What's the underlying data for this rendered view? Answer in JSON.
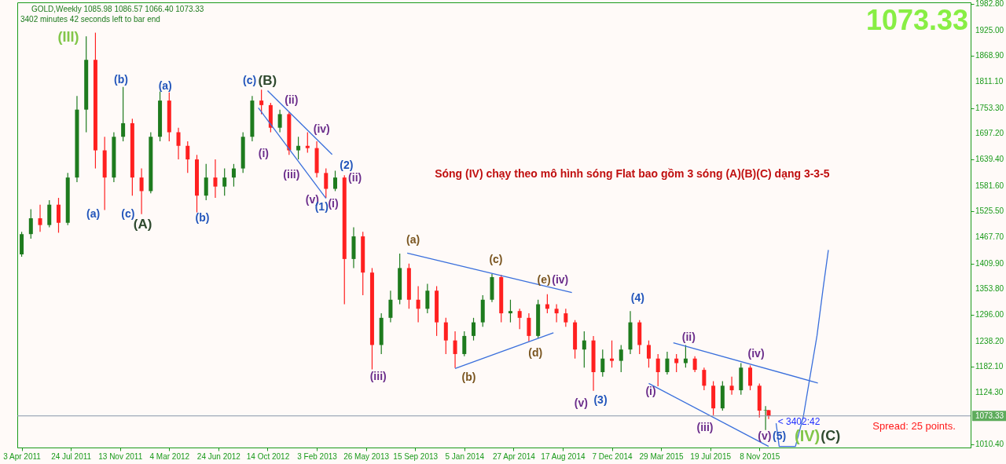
{
  "chart_data": {
    "type": "candlestick",
    "title": "GOLD,Weekly  1085.98 1086.57 1066.40 1073.33",
    "subtitle": "3402 minutes 42 seconds left to bar end",
    "x": [
      "2011-04-03",
      "2011-04-24",
      "2011-05-15",
      "2011-06-05",
      "2011-06-26",
      "2011-07-17",
      "2011-08-07",
      "2011-08-28",
      "2011-09-18",
      "2011-10-09",
      "2011-10-30",
      "2011-11-20",
      "2011-12-11",
      "2012-01-01",
      "2012-01-22",
      "2012-02-12",
      "2012-03-04",
      "2012-03-25",
      "2012-04-15",
      "2012-05-06",
      "2012-05-27",
      "2012-06-17",
      "2012-07-08",
      "2012-07-29",
      "2012-08-19",
      "2012-09-09",
      "2012-09-30",
      "2012-10-21",
      "2012-11-11",
      "2012-12-02",
      "2012-12-23",
      "2013-01-13",
      "2013-02-03",
      "2013-02-24",
      "2013-03-17",
      "2013-04-07",
      "2013-04-28",
      "2013-05-19",
      "2013-06-09",
      "2013-06-30",
      "2013-07-21",
      "2013-08-11",
      "2013-09-01",
      "2013-09-22",
      "2013-10-13",
      "2013-11-03",
      "2013-11-24",
      "2013-12-15",
      "2014-01-05",
      "2014-01-26",
      "2014-02-16",
      "2014-03-09",
      "2014-03-30",
      "2014-04-20",
      "2014-05-11",
      "2014-06-01",
      "2014-06-22",
      "2014-07-13",
      "2014-08-03",
      "2014-08-24",
      "2014-09-14",
      "2014-10-05",
      "2014-10-26",
      "2014-11-16",
      "2014-12-07",
      "2014-12-28",
      "2015-01-18",
      "2015-02-08",
      "2015-03-01",
      "2015-03-22",
      "2015-04-12",
      "2015-05-03",
      "2015-05-24",
      "2015-06-14",
      "2015-07-05",
      "2015-07-26",
      "2015-08-16",
      "2015-09-06",
      "2015-09-27",
      "2015-10-18",
      "2015-11-08",
      "2015-11-22",
      "2015-11-29"
    ],
    "ohlc": [
      [
        1430,
        1480,
        1425,
        1475
      ],
      [
        1475,
        1530,
        1465,
        1510
      ],
      [
        1510,
        1540,
        1480,
        1495
      ],
      [
        1495,
        1550,
        1490,
        1540
      ],
      [
        1540,
        1555,
        1478,
        1500
      ],
      [
        1500,
        1610,
        1495,
        1600
      ],
      [
        1600,
        1780,
        1590,
        1750
      ],
      [
        1750,
        1912,
        1700,
        1860
      ],
      [
        1860,
        1920,
        1620,
        1660
      ],
      [
        1660,
        1690,
        1528,
        1600
      ],
      [
        1600,
        1700,
        1590,
        1690
      ],
      [
        1690,
        1800,
        1680,
        1720
      ],
      [
        1720,
        1730,
        1560,
        1600
      ],
      [
        1600,
        1620,
        1519,
        1570
      ],
      [
        1570,
        1700,
        1565,
        1690
      ],
      [
        1690,
        1790,
        1680,
        1770
      ],
      [
        1770,
        1788,
        1680,
        1700
      ],
      [
        1700,
        1710,
        1640,
        1670
      ],
      [
        1670,
        1680,
        1610,
        1640
      ],
      [
        1640,
        1650,
        1523,
        1560
      ],
      [
        1560,
        1630,
        1550,
        1600
      ],
      [
        1600,
        1640,
        1555,
        1580
      ],
      [
        1580,
        1620,
        1560,
        1600
      ],
      [
        1600,
        1630,
        1580,
        1620
      ],
      [
        1620,
        1700,
        1610,
        1690
      ],
      [
        1690,
        1780,
        1680,
        1770
      ],
      [
        1770,
        1794,
        1740,
        1760
      ],
      [
        1760,
        1765,
        1700,
        1710
      ],
      [
        1710,
        1750,
        1700,
        1740
      ],
      [
        1740,
        1745,
        1650,
        1660
      ],
      [
        1660,
        1690,
        1640,
        1670
      ],
      [
        1670,
        1700,
        1655,
        1665
      ],
      [
        1665,
        1680,
        1600,
        1610
      ],
      [
        1610,
        1620,
        1555,
        1575
      ],
      [
        1575,
        1615,
        1570,
        1600
      ],
      [
        1600,
        1605,
        1320,
        1420
      ],
      [
        1420,
        1490,
        1400,
        1470
      ],
      [
        1470,
        1480,
        1340,
        1390
      ],
      [
        1390,
        1400,
        1176,
        1230
      ],
      [
        1230,
        1300,
        1210,
        1290
      ],
      [
        1290,
        1350,
        1280,
        1330
      ],
      [
        1330,
        1432,
        1320,
        1400
      ],
      [
        1400,
        1410,
        1310,
        1330
      ],
      [
        1330,
        1360,
        1280,
        1310
      ],
      [
        1310,
        1365,
        1300,
        1350
      ],
      [
        1350,
        1360,
        1250,
        1280
      ],
      [
        1280,
        1290,
        1210,
        1240
      ],
      [
        1240,
        1260,
        1179,
        1210
      ],
      [
        1210,
        1260,
        1205,
        1250
      ],
      [
        1250,
        1290,
        1240,
        1280
      ],
      [
        1280,
        1340,
        1270,
        1330
      ],
      [
        1330,
        1387,
        1325,
        1380
      ],
      [
        1380,
        1385,
        1280,
        1300
      ],
      [
        1300,
        1330,
        1280,
        1305
      ],
      [
        1305,
        1310,
        1265,
        1290
      ],
      [
        1290,
        1300,
        1238,
        1250
      ],
      [
        1250,
        1330,
        1245,
        1320
      ],
      [
        1320,
        1342,
        1300,
        1310
      ],
      [
        1310,
        1320,
        1280,
        1300
      ],
      [
        1300,
        1310,
        1270,
        1280
      ],
      [
        1280,
        1285,
        1200,
        1220
      ],
      [
        1220,
        1260,
        1180,
        1240
      ],
      [
        1240,
        1250,
        1129,
        1170
      ],
      [
        1170,
        1220,
        1160,
        1200
      ],
      [
        1200,
        1240,
        1180,
        1195
      ],
      [
        1195,
        1230,
        1170,
        1220
      ],
      [
        1220,
        1305,
        1210,
        1280
      ],
      [
        1280,
        1285,
        1210,
        1230
      ],
      [
        1230,
        1240,
        1180,
        1200
      ],
      [
        1200,
        1210,
        1139,
        1170
      ],
      [
        1170,
        1215,
        1165,
        1200
      ],
      [
        1200,
        1210,
        1170,
        1190
      ],
      [
        1190,
        1230,
        1180,
        1200
      ],
      [
        1200,
        1205,
        1170,
        1175
      ],
      [
        1175,
        1180,
        1130,
        1140
      ],
      [
        1140,
        1150,
        1075,
        1090
      ],
      [
        1090,
        1150,
        1085,
        1140
      ],
      [
        1140,
        1160,
        1120,
        1130
      ],
      [
        1130,
        1190,
        1120,
        1180
      ],
      [
        1180,
        1185,
        1130,
        1140
      ],
      [
        1140,
        1145,
        1070,
        1085
      ],
      [
        1085,
        1095,
        1042,
        1086
      ],
      [
        1085.98,
        1086.57,
        1066.4,
        1073.33
      ]
    ],
    "colors": [
      "#1e7b1e",
      "#1e7b1e",
      "#ff2020",
      "#1e7b1e",
      "#ff2020",
      "#1e7b1e",
      "#1e7b1e",
      "#1e7b1e",
      "#ff2020",
      "#ff2020",
      "#1e7b1e",
      "#1e7b1e",
      "#ff2020",
      "#ff2020",
      "#1e7b1e",
      "#1e7b1e",
      "#ff2020",
      "#ff2020",
      "#ff2020",
      "#ff2020",
      "#1e7b1e",
      "#ff2020",
      "#1e7b1e",
      "#1e7b1e",
      "#1e7b1e",
      "#1e7b1e",
      "#ff2020",
      "#ff2020",
      "#1e7b1e",
      "#ff2020",
      "#1e7b1e",
      "#ff2020",
      "#ff2020",
      "#ff2020",
      "#1e7b1e",
      "#ff2020",
      "#1e7b1e",
      "#ff2020",
      "#ff2020",
      "#1e7b1e",
      "#1e7b1e",
      "#1e7b1e",
      "#ff2020",
      "#ff2020",
      "#1e7b1e",
      "#ff2020",
      "#ff2020",
      "#ff2020",
      "#1e7b1e",
      "#1e7b1e",
      "#1e7b1e",
      "#1e7b1e",
      "#ff2020",
      "#1e7b1e",
      "#ff2020",
      "#ff2020",
      "#1e7b1e",
      "#ff2020",
      "#ff2020",
      "#ff2020",
      "#ff2020",
      "#1e7b1e",
      "#ff2020",
      "#1e7b1e",
      "#ff2020",
      "#1e7b1e",
      "#1e7b1e",
      "#ff2020",
      "#ff2020",
      "#ff2020",
      "#1e7b1e",
      "#ff2020",
      "#1e7b1e",
      "#ff2020",
      "#ff2020",
      "#ff2020",
      "#1e7b1e",
      "#ff2020",
      "#1e7b1e",
      "#ff2020",
      "#ff2020",
      "#1e7b1e",
      "#ff2020"
    ],
    "series": [
      {
        "type": "line",
        "color": "#3a6fdc",
        "x": [
          "2012-10-14",
          "2013-03-10"
        ],
        "values": [
          1792,
          1651
        ]
      },
      {
        "type": "line",
        "color": "#3a6fdc",
        "x": [
          "2012-09-23",
          "2013-02-24"
        ],
        "values": [
          1754,
          1554
        ]
      },
      {
        "type": "line",
        "color": "#3a6fdc",
        "x": [
          "2013-08-28",
          "2014-09-07"
        ],
        "values": [
          1433,
          1346
        ]
      },
      {
        "type": "line",
        "color": "#3a6fdc",
        "x": [
          "2013-12-15",
          "2014-07-27"
        ],
        "values": [
          1178,
          1257
        ]
      },
      {
        "type": "line",
        "color": "#3a6fdc",
        "x": [
          "2015-04-26",
          "2016-03-20"
        ],
        "values": [
          1235,
          1146
        ]
      },
      {
        "type": "line",
        "color": "#3a6fdc",
        "x": [
          "2015-03-01",
          "2015-11-29"
        ],
        "values": [
          1145,
          1006
        ]
      },
      {
        "type": "line",
        "color": "#3a6fdc",
        "x": [
          "2015-12-16",
          "2015-12-23",
          "2016-01-29",
          "2016-02-16",
          "2016-03-01",
          "2016-03-18",
          "2016-04-01",
          "2016-04-13"
        ],
        "values": [
          1057,
          1006,
          1006,
          1072,
          1153,
          1250,
          1355,
          1440
        ]
      }
    ],
    "xlim": [
      "2011-04-02",
      "2017-02-22"
    ],
    "ylim": [
      1003.5,
      1987
    ],
    "xticks": [
      {
        "value": "2011-04-03",
        "label": "3 Apr 2011"
      },
      {
        "value": "2011-07-24",
        "label": "24 Jul 2011"
      },
      {
        "value": "2011-11-13",
        "label": "13 Nov 2011"
      },
      {
        "value": "2012-03-04",
        "label": "4 Mar 2012"
      },
      {
        "value": "2012-06-24",
        "label": "24 Jun 2012"
      },
      {
        "value": "2012-10-14",
        "label": "14 Oct 2012"
      },
      {
        "value": "2013-02-03",
        "label": "3 Feb 2013"
      },
      {
        "value": "2013-05-26",
        "label": "26 May 2013"
      },
      {
        "value": "2013-09-15",
        "label": "15 Sep 2013"
      },
      {
        "value": "2014-01-05",
        "label": "5 Jan 2014"
      },
      {
        "value": "2014-04-27",
        "label": "27 Apr 2014"
      },
      {
        "value": "2014-08-17",
        "label": "17 Aug 2014"
      },
      {
        "value": "2014-12-07",
        "label": "7 Dec 2014"
      },
      {
        "value": "2015-03-29",
        "label": "29 Mar 2015"
      },
      {
        "value": "2015-07-19",
        "label": "19 Jul 2015"
      },
      {
        "value": "2015-11-08",
        "label": "8 Nov 2015"
      }
    ],
    "yticks": [
      {
        "value": 1010.4,
        "label": "1010.40"
      },
      {
        "value": 1124.3,
        "label": "1124.30"
      },
      {
        "value": 1182.1,
        "label": "1182.10"
      },
      {
        "value": 1238.2,
        "label": "1238.20"
      },
      {
        "value": 1296,
        "label": "1296.00"
      },
      {
        "value": 1353.8,
        "label": "1353.80"
      },
      {
        "value": 1409.9,
        "label": "1409.90"
      },
      {
        "value": 1467.7,
        "label": "1467.70"
      },
      {
        "value": 1525.5,
        "label": "1525.50"
      },
      {
        "value": 1581.6,
        "label": "1581.60"
      },
      {
        "value": 1639.4,
        "label": "1639.40"
      },
      {
        "value": 1697.2,
        "label": "1697.20"
      },
      {
        "value": 1753.3,
        "label": "1753.30"
      },
      {
        "value": 1811.1,
        "label": "1811.10"
      },
      {
        "value": 1868.9,
        "label": "1868.90"
      },
      {
        "value": 1925,
        "label": "1925.00"
      },
      {
        "value": 1982.8,
        "label": "1982.80"
      }
    ],
    "ref_lines": [
      {
        "axis": "y",
        "value": 1073.33,
        "label": "1073.33",
        "color": "#8797aa"
      }
    ],
    "annotations": [
      "Sóng (IV) chạy theo mô hình sóng Flat bao gồm 3 sóng (A)(B)(C) dạng 3-3-5",
      "(III)",
      "(b)",
      "(a)",
      "(c)",
      "(B)",
      "(a)",
      "(c)",
      "(A)",
      "(b)",
      "(ii)",
      "(iv)",
      "(i)",
      "(iii)",
      "(v)",
      "(1)",
      "(i)",
      "(2)",
      "(ii)",
      "(iii)",
      "(a)",
      "(c)",
      "(e)",
      "(iv)",
      "(b)",
      "(d)",
      "(v)",
      "(3)",
      "(4)",
      "(i)",
      "(ii)",
      "(iii)",
      "(iv)",
      "(v)",
      "(5)",
      "(IV)",
      "(C)",
      "< 3402:42",
      "Spread: 25 points.",
      "1073.33"
    ]
  }
}
